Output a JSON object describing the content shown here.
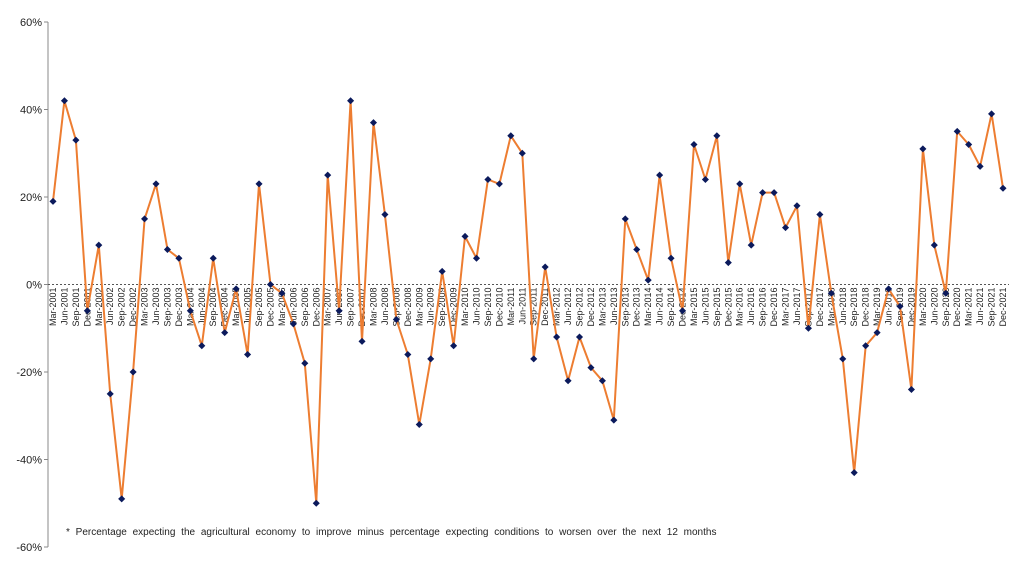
{
  "chart_data": {
    "type": "line",
    "title": "",
    "xlabel": "",
    "ylabel": "",
    "ylim": [
      -60,
      60
    ],
    "y_ticks": [
      60,
      40,
      20,
      0,
      -20,
      -40,
      -60
    ],
    "y_tick_format": "percent",
    "grid": false,
    "legend": "none",
    "colors": {
      "line": "#ED7D31",
      "marker": "#0B1A5C",
      "zero_line": "#555555",
      "axis": "#888888"
    },
    "categories": [
      "Mar-2001",
      "Jun-2001",
      "Sep-2001",
      "Dec-2001",
      "Mar-2002",
      "Jun-2002",
      "Sep-2002",
      "Dec-2002",
      "Mar-2003",
      "Jun-2003",
      "Sep-2003",
      "Dec-2003",
      "Mar-2004",
      "Jun-2004",
      "Sep-2004",
      "Dec-2004",
      "Mar-2005",
      "Jun-2005",
      "Sep-2005",
      "Dec-2005",
      "Mar-2006",
      "Jun-2006",
      "Sep-2006",
      "Dec-2006",
      "Mar-2007",
      "Jun-2007",
      "Sep-2007",
      "Dec-2007",
      "Mar-2008",
      "Jun-2008",
      "Sep-2008",
      "Dec-2008",
      "Mar-2009",
      "Jun-2009",
      "Sep-2009",
      "Dec-2009",
      "Mar-2010",
      "Jun-2010",
      "Sep-2010",
      "Dec-2010",
      "Mar-2011",
      "Jun-2011",
      "Sep-2011",
      "Dec-2011",
      "Mar-2012",
      "Jun-2012",
      "Sep-2012",
      "Dec-2012",
      "Mar-2013",
      "Jun-2013",
      "Sep-2013",
      "Dec-2013",
      "Mar-2014",
      "Jun-2014",
      "Sep-2014",
      "Dec-2014",
      "Mar-2015",
      "Jun-2015",
      "Sep-2015",
      "Dec-2015",
      "Mar-2016",
      "Jun-2016",
      "Sep-2016",
      "Dec-2016",
      "Mar-2017",
      "Jun-2017",
      "Sep-2017",
      "Dec-2017",
      "Mar-2018",
      "Jun-2018",
      "Sep-2018",
      "Dec-2018",
      "Mar-2019",
      "Jun-2019",
      "Sep-2019",
      "Dec-2019",
      "Mar-2020",
      "Jun-2020",
      "Sep-2020",
      "Dec-2020",
      "Mar-2021",
      "Jun-2021",
      "Sep-2021",
      "Dec-2021"
    ],
    "series": [
      {
        "values": [
          19,
          42,
          33,
          -6,
          9,
          -25,
          -49,
          -20,
          15,
          23,
          8,
          6,
          -6,
          -14,
          6,
          -11,
          -1,
          -16,
          23,
          0,
          -2,
          -9,
          -18,
          -50,
          25,
          -6,
          42,
          -13,
          37,
          16,
          -8,
          -16,
          -32,
          -17,
          3,
          -14,
          11,
          6,
          24,
          23,
          34,
          30,
          -17,
          4,
          -12,
          -22,
          -12,
          -19,
          -22,
          -31,
          15,
          8,
          1,
          25,
          6,
          -6,
          32,
          24,
          34,
          5,
          23,
          9,
          21,
          21,
          13,
          18,
          -10,
          16,
          -2,
          -17,
          -43,
          -14,
          -11,
          -1,
          -5,
          -24,
          31,
          9,
          -2,
          35,
          32,
          27,
          39,
          22
        ]
      }
    ],
    "footnote": "* Percentage expecting the agricultural economy to improve minus percentage expecting conditions to worsen over the next 12 months"
  }
}
